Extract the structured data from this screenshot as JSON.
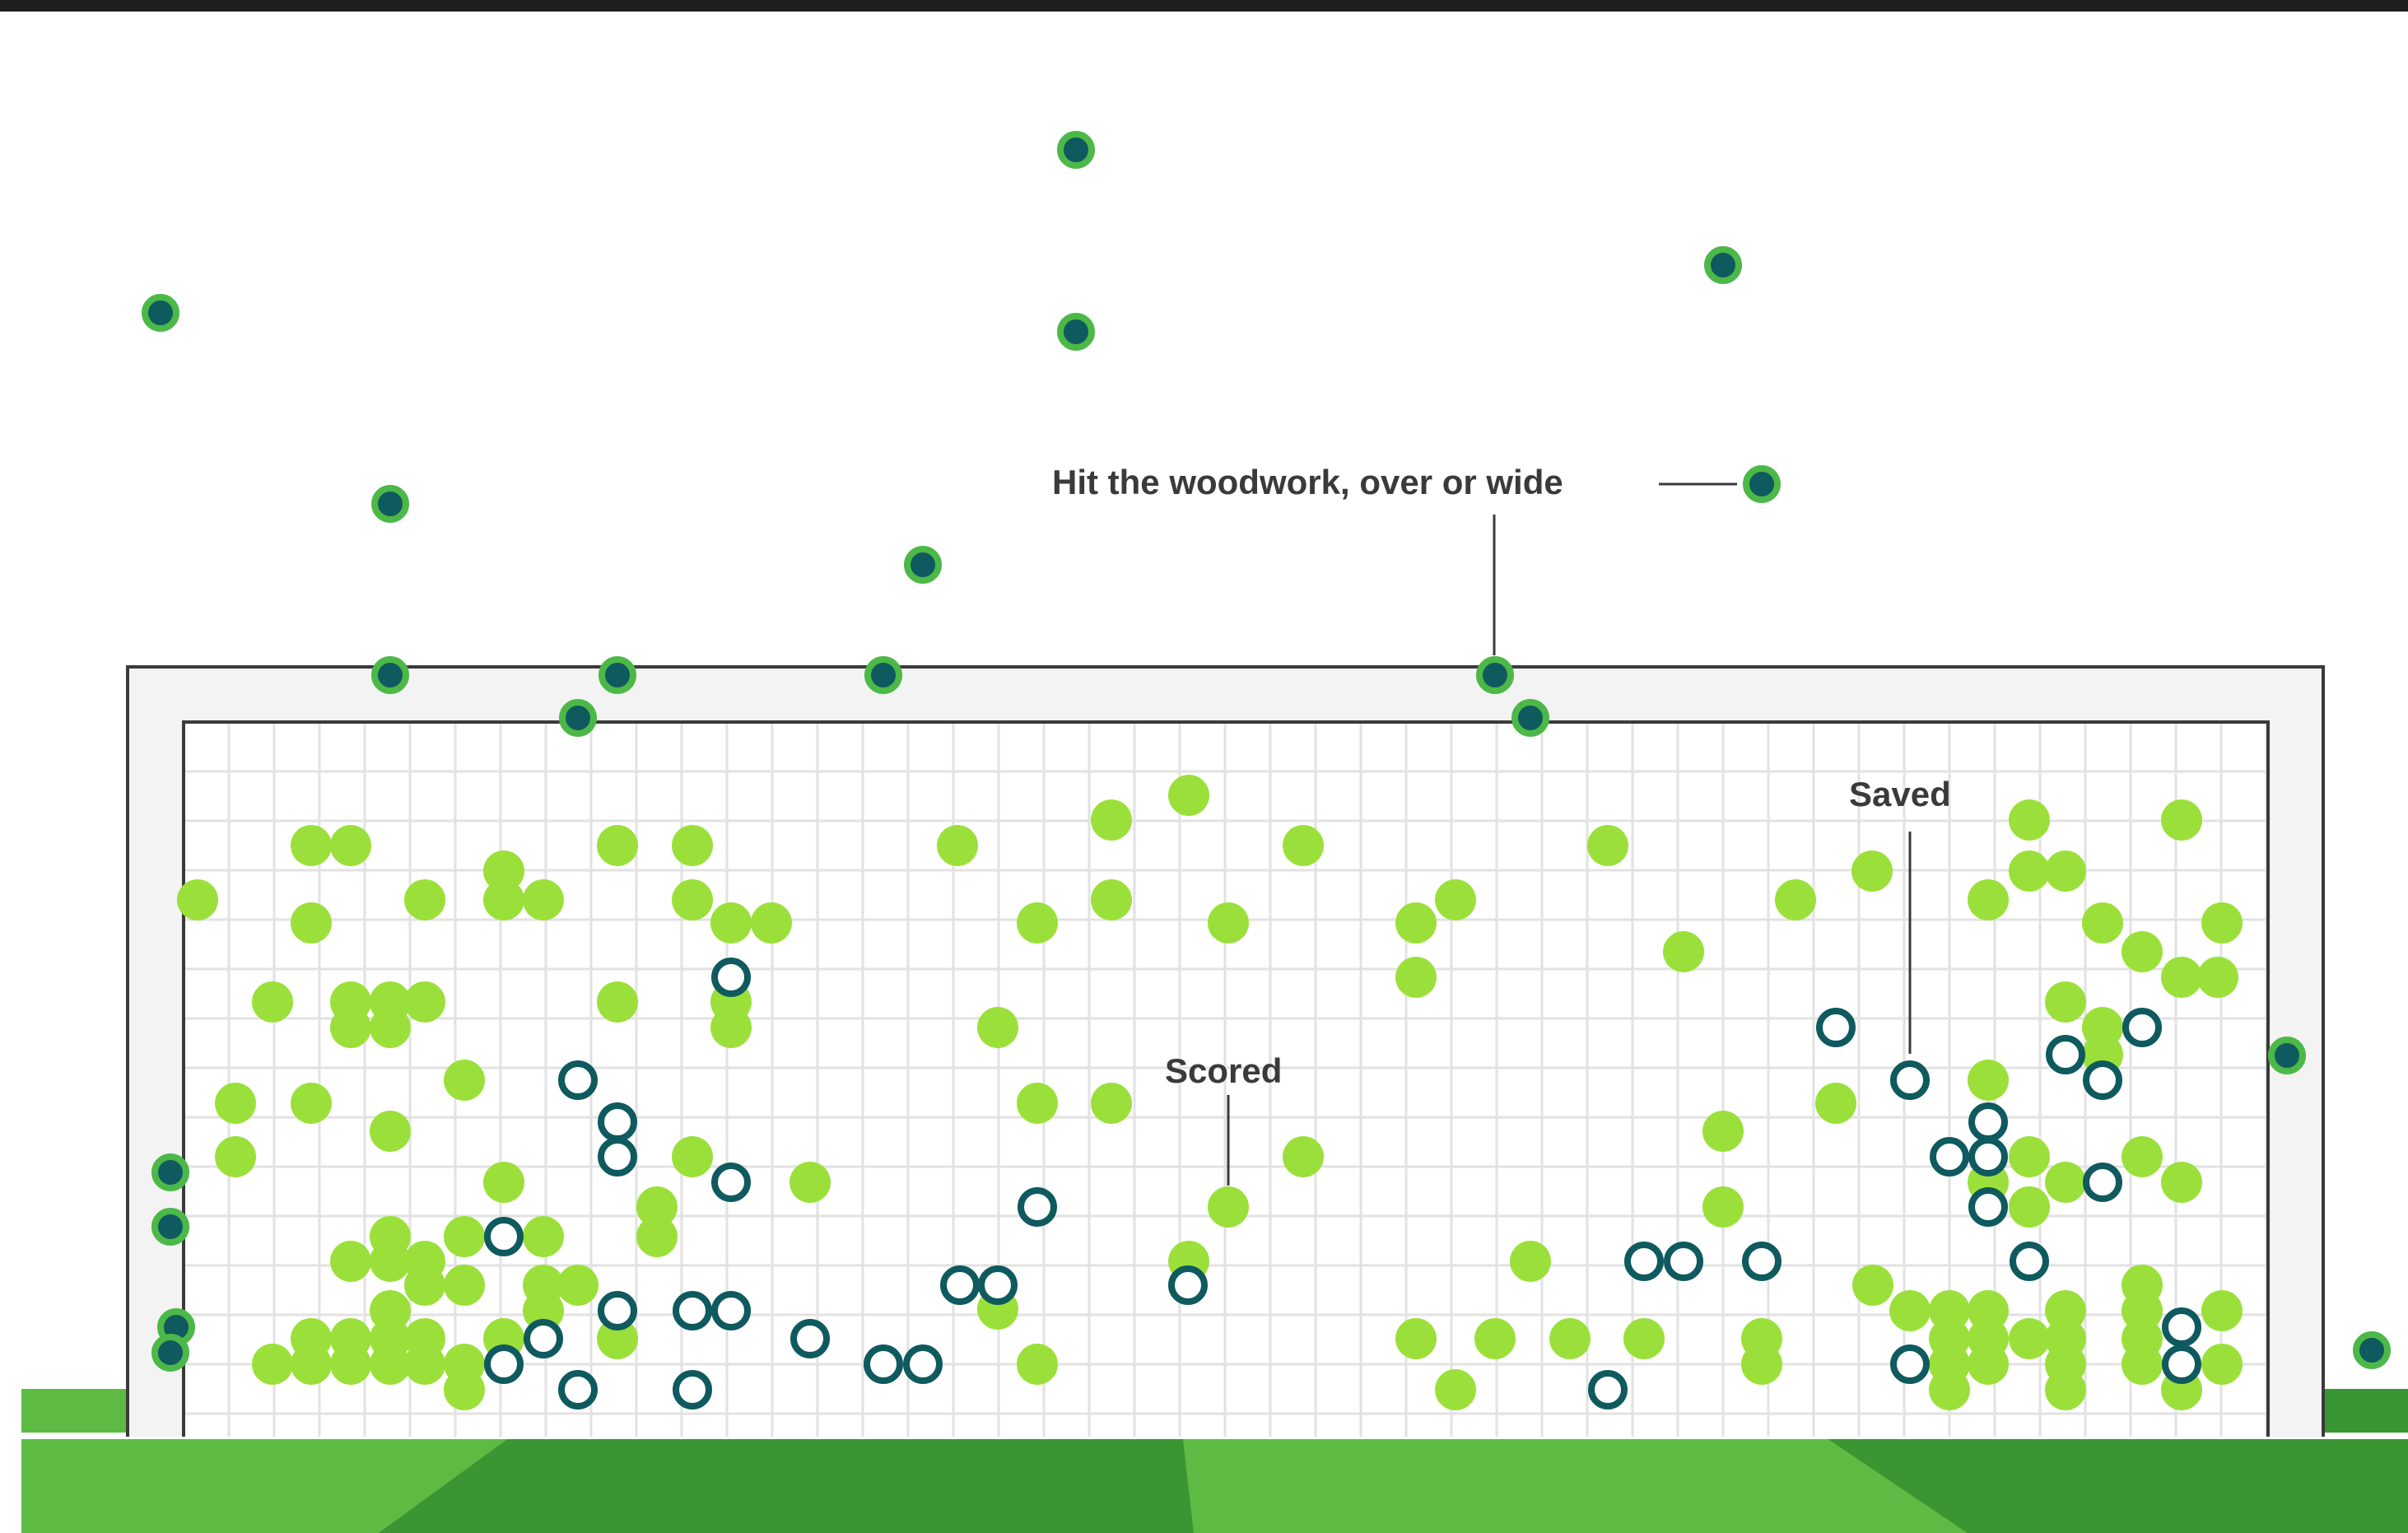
{
  "chart_data": {
    "type": "scatter",
    "colors": {
      "scored": "#9be03a",
      "saved_ring": "#0f5a5e",
      "missed_core": "#0f5a5e",
      "missed_ring": "#4cb848",
      "pitch_light": "#5bb83c",
      "pitch_dark": "#3c9a34",
      "net_line": "#e2e2e2",
      "frame": "#3a3a3a"
    },
    "annotations": [
      {
        "id": "woodwork",
        "text": "Hit the woodwork, over or wide"
      },
      {
        "id": "saved",
        "text": "Saved"
      },
      {
        "id": "scored",
        "text": "Scored"
      }
    ],
    "series": [
      {
        "key": "woodwork",
        "points": [
          [
            195,
            380
          ],
          [
            1307,
            182
          ],
          [
            1307,
            403
          ],
          [
            2093,
            322
          ],
          [
            474,
            612
          ],
          [
            1121,
            686
          ],
          [
            2140,
            588
          ],
          [
            474,
            820
          ],
          [
            750,
            820
          ],
          [
            1073,
            820
          ],
          [
            1816,
            820
          ],
          [
            702,
            872
          ],
          [
            1859,
            872
          ],
          [
            2778,
            1282
          ],
          [
            207,
            1424
          ],
          [
            207,
            1490
          ],
          [
            214,
            1612
          ],
          [
            207,
            1643
          ],
          [
            2881,
            1640
          ]
        ]
      },
      {
        "key": "saved",
        "points": [
          [
            888,
            1187
          ],
          [
            702,
            1312
          ],
          [
            750,
            1363
          ],
          [
            750,
            1405
          ],
          [
            888,
            1436
          ],
          [
            612,
            1502
          ],
          [
            750,
            1592
          ],
          [
            841,
            1592
          ],
          [
            888,
            1592
          ],
          [
            984,
            1626
          ],
          [
            1260,
            1466
          ],
          [
            1166,
            1561
          ],
          [
            1212,
            1561
          ],
          [
            1443,
            1561
          ],
          [
            612,
            1657
          ],
          [
            660,
            1626
          ],
          [
            702,
            1688
          ],
          [
            841,
            1688
          ],
          [
            1073,
            1657
          ],
          [
            1121,
            1657
          ],
          [
            2230,
            1248
          ],
          [
            2320,
            1312
          ],
          [
            2415,
            1363
          ],
          [
            2368,
            1405
          ],
          [
            2415,
            1405
          ],
          [
            2415,
            1466
          ],
          [
            2509,
            1281
          ],
          [
            2554,
            1312
          ],
          [
            2602,
            1248
          ],
          [
            2554,
            1436
          ],
          [
            2465,
            1532
          ],
          [
            1997,
            1532
          ],
          [
            2045,
            1532
          ],
          [
            2140,
            1532
          ],
          [
            1953,
            1688
          ],
          [
            2320,
            1657
          ],
          [
            2650,
            1612
          ],
          [
            2650,
            1657
          ]
        ]
      },
      {
        "key": "scored",
        "points": [
          [
            240,
            1093
          ],
          [
            378,
            1027
          ],
          [
            426,
            1027
          ],
          [
            378,
            1121
          ],
          [
            516,
            1093
          ],
          [
            612,
            1058
          ],
          [
            612,
            1093
          ],
          [
            660,
            1093
          ],
          [
            750,
            1027
          ],
          [
            841,
            1027
          ],
          [
            841,
            1093
          ],
          [
            888,
            1121
          ],
          [
            937,
            1121
          ],
          [
            331,
            1217
          ],
          [
            426,
            1217
          ],
          [
            474,
            1217
          ],
          [
            516,
            1217
          ],
          [
            426,
            1248
          ],
          [
            474,
            1248
          ],
          [
            750,
            1217
          ],
          [
            888,
            1217
          ],
          [
            888,
            1248
          ],
          [
            286,
            1340
          ],
          [
            378,
            1340
          ],
          [
            286,
            1405
          ],
          [
            474,
            1374
          ],
          [
            564,
            1312
          ],
          [
            612,
            1436
          ],
          [
            564,
            1502
          ],
          [
            660,
            1502
          ],
          [
            426,
            1532
          ],
          [
            474,
            1502
          ],
          [
            474,
            1532
          ],
          [
            516,
            1532
          ],
          [
            516,
            1561
          ],
          [
            474,
            1592
          ],
          [
            564,
            1561
          ],
          [
            660,
            1561
          ],
          [
            841,
            1405
          ],
          [
            984,
            1436
          ],
          [
            798,
            1466
          ],
          [
            798,
            1502
          ],
          [
            702,
            1561
          ],
          [
            660,
            1592
          ],
          [
            750,
            1626
          ],
          [
            378,
            1626
          ],
          [
            426,
            1626
          ],
          [
            474,
            1626
          ],
          [
            516,
            1626
          ],
          [
            331,
            1657
          ],
          [
            378,
            1657
          ],
          [
            426,
            1657
          ],
          [
            474,
            1657
          ],
          [
            516,
            1657
          ],
          [
            564,
            1657
          ],
          [
            564,
            1688
          ],
          [
            612,
            1626
          ],
          [
            1163,
            1027
          ],
          [
            1350,
            996
          ],
          [
            1444,
            966
          ],
          [
            1583,
            1027
          ],
          [
            1260,
            1121
          ],
          [
            1350,
            1093
          ],
          [
            1492,
            1121
          ],
          [
            1212,
            1248
          ],
          [
            1260,
            1340
          ],
          [
            1350,
            1340
          ],
          [
            1583,
            1405
          ],
          [
            1492,
            1466
          ],
          [
            1444,
            1532
          ],
          [
            1212,
            1590
          ],
          [
            1260,
            1657
          ],
          [
            1720,
            1121
          ],
          [
            1720,
            1187
          ],
          [
            1768,
            1093
          ],
          [
            1953,
            1027
          ],
          [
            2045,
            1156
          ],
          [
            2181,
            1093
          ],
          [
            2093,
            1374
          ],
          [
            2093,
            1466
          ],
          [
            1859,
            1532
          ],
          [
            1720,
            1626
          ],
          [
            1816,
            1626
          ],
          [
            1907,
            1626
          ],
          [
            1997,
            1626
          ],
          [
            1768,
            1688
          ],
          [
            2140,
            1626
          ],
          [
            2140,
            1657
          ],
          [
            2230,
            1340
          ],
          [
            2275,
            1561
          ],
          [
            2320,
            1592
          ],
          [
            2368,
            1592
          ],
          [
            2368,
            1626
          ],
          [
            2368,
            1657
          ],
          [
            2368,
            1688
          ],
          [
            2415,
            1657
          ],
          [
            2509,
            1592
          ],
          [
            2509,
            1626
          ],
          [
            2509,
            1657
          ],
          [
            2509,
            1688
          ],
          [
            2602,
            1561
          ],
          [
            2602,
            1592
          ],
          [
            2602,
            1626
          ],
          [
            2602,
            1657
          ],
          [
            2699,
            1592
          ],
          [
            2650,
            1688
          ],
          [
            2699,
            1657
          ],
          [
            2415,
            1312
          ],
          [
            2465,
            1405
          ],
          [
            2465,
            1466
          ],
          [
            2509,
            1436
          ],
          [
            2602,
            1405
          ],
          [
            2650,
            1436
          ],
          [
            2465,
            996
          ],
          [
            2465,
            1058
          ],
          [
            2509,
            1058
          ],
          [
            2415,
            1093
          ],
          [
            2554,
            1121
          ],
          [
            2602,
            1156
          ],
          [
            2650,
            1187
          ],
          [
            2694,
            1187
          ],
          [
            2650,
            996
          ],
          [
            2699,
            1121
          ],
          [
            2509,
            1217
          ],
          [
            2554,
            1248
          ],
          [
            2554,
            1281
          ],
          [
            2415,
            1436
          ],
          [
            2465,
            1466
          ],
          [
            2274,
            1058
          ],
          [
            2415,
            1592
          ],
          [
            2415,
            1626
          ],
          [
            2465,
            1626
          ]
        ]
      }
    ]
  }
}
